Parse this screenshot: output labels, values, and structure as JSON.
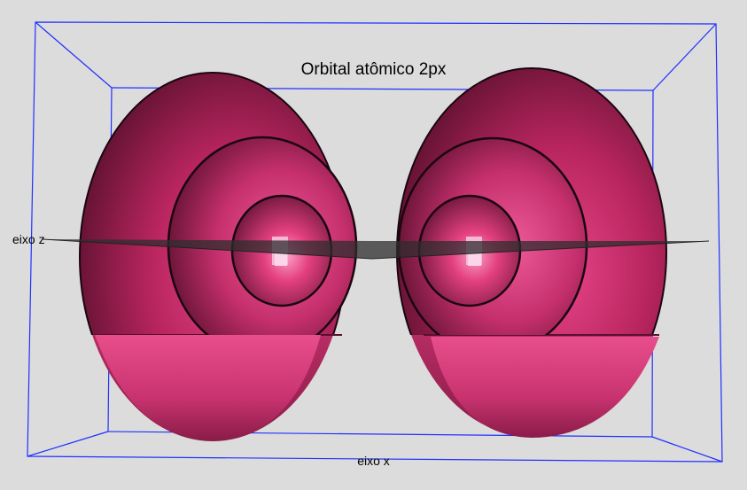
{
  "title": "Orbital atômico 2px",
  "axes": {
    "z_label": "eixo z",
    "x_label": "eixo x"
  },
  "colors": {
    "background": "#dcdcdc",
    "box": "#2030ff",
    "orbital": "#d8306f",
    "orbital_highlight": "#f07ab0",
    "plane": "#3a3a3a"
  }
}
